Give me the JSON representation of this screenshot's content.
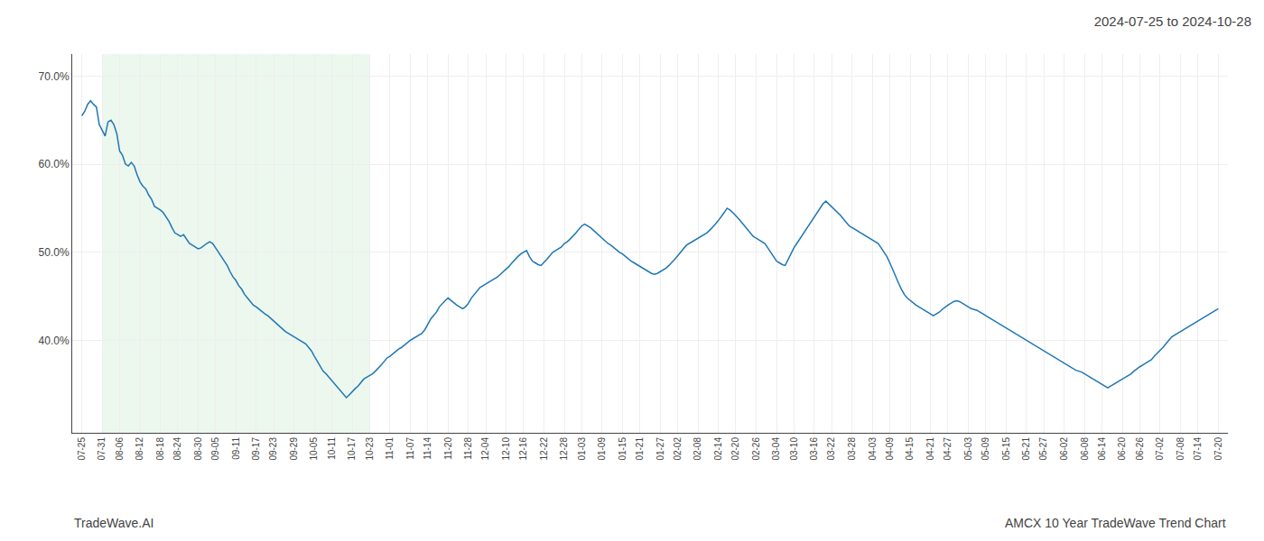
{
  "chart_data": {
    "type": "line",
    "title": "2024-07-25 to 2024-10-28",
    "annotations": [
      "TradeWave.AI",
      "AMCX 10 Year TradeWave Trend Chart"
    ],
    "grid": true,
    "ylim": [
      0.295,
      0.725
    ],
    "yticks": [
      {
        "value": 0.4,
        "label": "40.0%"
      },
      {
        "value": 0.5,
        "label": "50.0%"
      },
      {
        "value": 0.6,
        "label": "60.0%"
      },
      {
        "value": 0.7,
        "label": "70.0%"
      }
    ],
    "shade": {
      "from": "07-31",
      "to": "10-23",
      "color": "#d4edda"
    },
    "categories": [
      "07-25",
      null,
      null,
      null,
      null,
      null,
      null,
      "07-31",
      null,
      null,
      null,
      null,
      null,
      "08-06",
      null,
      null,
      null,
      null,
      null,
      null,
      "08-12",
      null,
      null,
      null,
      null,
      null,
      null,
      "08-18",
      null,
      null,
      null,
      null,
      null,
      "08-24",
      null,
      null,
      null,
      null,
      null,
      null,
      "08-30",
      null,
      null,
      null,
      null,
      null,
      "09-05",
      null,
      null,
      null,
      null,
      null,
      null,
      "09-11",
      null,
      null,
      null,
      null,
      null,
      null,
      "09-17",
      null,
      null,
      null,
      null,
      null,
      "09-23",
      null,
      null,
      null,
      null,
      null,
      null,
      "09-29",
      null,
      null,
      null,
      null,
      null,
      null,
      "10-05",
      null,
      null,
      null,
      null,
      null,
      "10-11",
      null,
      null,
      null,
      null,
      null,
      null,
      "10-17",
      null,
      null,
      null,
      null,
      null,
      "10-23",
      null,
      null,
      null,
      null,
      null,
      null,
      "11-01",
      null,
      null,
      null,
      null,
      null,
      null,
      "11-07",
      null,
      null,
      null,
      null,
      null,
      "11-14",
      null,
      null,
      null,
      null,
      null,
      null,
      "11-20",
      null,
      null,
      null,
      null,
      null,
      null,
      "11-28",
      null,
      null,
      null,
      null,
      null,
      "12-04",
      null,
      null,
      null,
      null,
      null,
      null,
      "12-10",
      null,
      null,
      null,
      null,
      null,
      "12-16",
      null,
      null,
      null,
      null,
      null,
      null,
      "12-22",
      null,
      null,
      null,
      null,
      null,
      null,
      "12-28",
      null,
      null,
      null,
      null,
      null,
      "01-03",
      null,
      null,
      null,
      null,
      null,
      null,
      "01-09",
      null,
      null,
      null,
      null,
      null,
      null,
      "01-15",
      null,
      null,
      null,
      null,
      null,
      "01-21",
      null,
      null,
      null,
      null,
      null,
      null,
      "01-27",
      null,
      null,
      null,
      null,
      null,
      "02-02",
      null,
      null,
      null,
      null,
      null,
      null,
      "02-08",
      null,
      null,
      null,
      null,
      null,
      null,
      "02-14",
      null,
      null,
      null,
      null,
      null,
      "02-20",
      null,
      null,
      null,
      null,
      null,
      null,
      "02-26",
      null,
      null,
      null,
      null,
      null,
      null,
      "03-04",
      null,
      null,
      null,
      null,
      null,
      "03-10",
      null,
      null,
      null,
      null,
      null,
      null,
      "03-16",
      null,
      null,
      null,
      null,
      null,
      "03-22",
      null,
      null,
      null,
      null,
      null,
      null,
      "03-28",
      null,
      null,
      null,
      null,
      null,
      null,
      "04-03",
      null,
      null,
      null,
      null,
      null,
      "04-09",
      null,
      null,
      null,
      null,
      null,
      null,
      "04-15",
      null,
      null,
      null,
      null,
      null,
      null,
      "04-21",
      null,
      null,
      null,
      null,
      null,
      "04-27",
      null,
      null,
      null,
      null,
      null,
      null,
      "05-03",
      null,
      null,
      null,
      null,
      null,
      "05-09",
      null,
      null,
      null,
      null,
      null,
      null,
      "05-15",
      null,
      null,
      null,
      null,
      null,
      null,
      "05-21",
      null,
      null,
      null,
      null,
      null,
      "05-27",
      null,
      null,
      null,
      null,
      null,
      null,
      "06-02",
      null,
      null,
      null,
      null,
      null,
      null,
      "06-08",
      null,
      null,
      null,
      null,
      null,
      "06-14",
      null,
      null,
      null,
      null,
      null,
      null,
      "06-20",
      null,
      null,
      null,
      null,
      null,
      "06-26",
      null,
      null,
      null,
      null,
      null,
      null,
      "07-02",
      null,
      null,
      null,
      null,
      null,
      null,
      "07-08",
      null,
      null,
      null,
      null,
      null,
      "07-14",
      null,
      null,
      null,
      null,
      null,
      null,
      "07-20"
    ],
    "values": [
      0.655,
      0.66,
      0.668,
      0.672,
      0.668,
      0.665,
      0.645,
      0.638,
      0.632,
      0.648,
      0.65,
      0.645,
      0.635,
      0.615,
      0.61,
      0.6,
      0.598,
      0.602,
      0.598,
      0.588,
      0.58,
      0.575,
      0.572,
      0.565,
      0.56,
      0.552,
      0.55,
      0.548,
      0.545,
      0.54,
      0.535,
      0.528,
      0.522,
      0.52,
      0.518,
      0.52,
      0.515,
      0.51,
      0.508,
      0.506,
      0.504,
      0.505,
      0.508,
      0.51,
      0.512,
      0.51,
      0.505,
      0.5,
      0.495,
      0.49,
      0.485,
      0.478,
      0.472,
      0.468,
      0.462,
      0.458,
      0.452,
      0.448,
      0.444,
      0.44,
      0.438,
      0.435,
      0.432,
      0.43,
      0.428,
      0.425,
      0.422,
      0.418,
      0.415,
      0.412,
      0.41,
      0.408,
      0.406,
      0.404,
      0.402,
      0.4,
      0.398,
      0.396,
      0.392,
      0.388,
      0.382,
      0.376,
      0.37,
      0.365,
      0.362,
      0.358,
      0.355,
      0.35,
      0.346,
      0.342,
      0.338,
      0.335,
      0.338,
      0.342,
      0.345,
      0.348,
      0.352,
      0.356,
      0.358,
      0.36,
      0.362,
      0.365,
      0.368,
      0.372,
      0.376,
      0.38,
      0.382,
      0.385,
      0.388,
      0.39,
      0.392,
      0.395,
      0.398,
      0.4,
      0.402,
      0.404,
      0.406,
      0.408,
      0.412,
      0.418,
      0.424,
      0.428,
      0.432,
      0.438,
      0.442,
      0.445,
      0.448,
      0.445,
      0.442,
      0.44,
      0.438,
      0.436,
      0.438,
      0.442,
      0.448,
      0.452,
      0.455,
      0.46,
      0.462,
      0.464,
      0.466,
      0.468,
      0.47,
      0.472,
      0.475,
      0.478,
      0.48,
      0.484,
      0.488,
      0.492,
      0.495,
      0.498,
      0.5,
      0.502,
      0.495,
      0.49,
      0.488,
      0.486,
      0.485,
      0.488,
      0.492,
      0.496,
      0.5,
      0.502,
      0.504,
      0.506,
      0.51,
      0.512,
      0.515,
      0.518,
      0.522,
      0.526,
      0.53,
      0.532,
      0.53,
      0.528,
      0.525,
      0.522,
      0.518,
      0.515,
      0.512,
      0.51,
      0.508,
      0.505,
      0.502,
      0.5,
      0.498,
      0.495,
      0.492,
      0.49,
      0.488,
      0.486,
      0.484,
      0.482,
      0.48,
      0.478,
      0.476,
      0.475,
      0.476,
      0.478,
      0.48,
      0.482,
      0.485,
      0.488,
      0.492,
      0.496,
      0.5,
      0.504,
      0.508,
      0.51,
      0.512,
      0.514,
      0.516,
      0.518,
      0.52,
      0.522,
      0.525,
      0.528,
      0.532,
      0.536,
      0.54,
      0.545,
      0.55,
      0.548,
      0.545,
      0.542,
      0.538,
      0.534,
      0.53,
      0.526,
      0.522,
      0.518,
      0.516,
      0.514,
      0.512,
      0.51,
      0.505,
      0.5,
      0.495,
      0.49,
      0.488,
      0.486,
      0.485,
      0.492,
      0.498,
      0.505,
      0.51,
      0.515,
      0.52,
      0.525,
      0.53,
      0.535,
      0.54,
      0.545,
      0.55,
      0.555,
      0.558,
      0.555,
      0.552,
      0.548,
      0.545,
      0.542,
      0.538,
      0.534,
      0.53,
      0.528,
      0.526,
      0.524,
      0.522,
      0.52,
      0.518,
      0.516,
      0.514,
      0.512,
      0.51,
      0.505,
      0.5,
      0.495,
      0.488,
      0.48,
      0.472,
      0.465,
      0.458,
      0.452,
      0.448,
      0.445,
      0.442,
      0.44,
      0.438,
      0.436,
      0.434,
      0.432,
      0.43,
      0.428,
      0.43,
      0.432,
      0.435,
      0.438,
      0.44,
      0.442,
      0.444,
      0.445,
      0.444,
      0.442,
      0.44,
      0.438,
      0.436,
      0.435,
      0.434,
      0.432,
      0.43,
      0.428,
      0.426,
      0.424,
      0.422,
      0.42,
      0.418,
      0.416,
      0.414,
      0.412,
      0.41,
      0.408,
      0.406,
      0.404,
      0.402,
      0.4,
      0.398,
      0.396,
      0.394,
      0.392,
      0.39,
      0.388,
      0.386,
      0.384,
      0.382,
      0.38,
      0.378,
      0.376,
      0.374,
      0.372,
      0.37,
      0.368,
      0.366,
      0.365,
      0.364,
      0.362,
      0.36,
      0.358,
      0.356,
      0.354,
      0.352,
      0.35,
      0.348,
      0.346,
      0.348,
      0.35,
      0.352,
      0.354,
      0.356,
      0.358,
      0.36,
      0.362,
      0.365,
      0.368,
      0.37,
      0.372,
      0.374,
      0.376,
      0.378,
      0.382,
      0.385,
      0.388,
      0.392,
      0.396,
      0.4,
      0.404,
      0.406,
      0.408,
      0.41,
      0.412,
      0.414,
      0.416,
      0.418,
      0.42,
      0.422,
      0.424,
      0.426,
      0.428,
      0.43,
      0.432,
      0.434,
      0.436
    ]
  }
}
